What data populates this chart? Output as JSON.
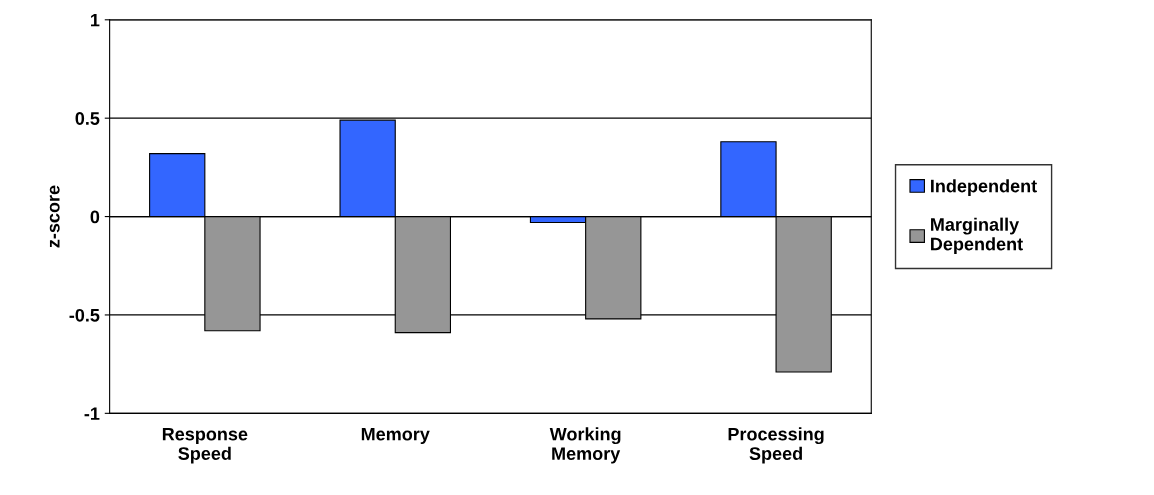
{
  "chart_data": {
    "type": "bar",
    "ylabel": "z-score",
    "categories": [
      "Response\nSpeed",
      "Memory",
      "Working\nMemory",
      "Processing\nSpeed"
    ],
    "series": [
      {
        "name": "Independent",
        "color": "#3366ff",
        "values": [
          0.32,
          0.49,
          -0.03,
          0.38
        ]
      },
      {
        "name": "Marginally\nDependent",
        "color": "#969696",
        "values": [
          -0.58,
          -0.59,
          -0.52,
          -0.79
        ]
      }
    ],
    "ylim": [
      -1,
      1
    ],
    "yticks": [
      -1,
      -0.5,
      0,
      0.5,
      1
    ],
    "grid": "y",
    "legend": "right"
  }
}
